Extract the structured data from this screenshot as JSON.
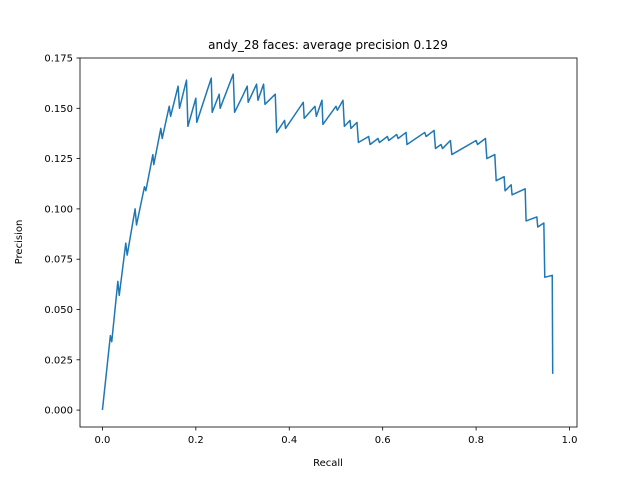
{
  "chart_data": {
    "type": "line",
    "title": "andy_28 faces: average precision 0.129",
    "x_label": "Recall",
    "y_label": "Precision",
    "x": [
      0,
      0.017,
      0.02,
      0.033,
      0.036,
      0.05,
      0.053,
      0.07,
      0.073,
      0.09,
      0.093,
      0.108,
      0.11,
      0.125,
      0.128,
      0.143,
      0.146,
      0.162,
      0.165,
      0.18,
      0.183,
      0.2,
      0.202,
      0.233,
      0.235,
      0.25,
      0.252,
      0.28,
      0.283,
      0.3,
      0.31,
      0.312,
      0.33,
      0.333,
      0.345,
      0.348,
      0.37,
      0.373,
      0.39,
      0.392,
      0.43,
      0.432,
      0.455,
      0.458,
      0.47,
      0.472,
      0.5,
      0.503,
      0.515,
      0.518,
      0.53,
      0.532,
      0.545,
      0.548,
      0.57,
      0.573,
      0.59,
      0.593,
      0.61,
      0.613,
      0.63,
      0.633,
      0.65,
      0.652,
      0.69,
      0.693,
      0.71,
      0.713,
      0.725,
      0.728,
      0.745,
      0.748,
      0.8,
      0.803,
      0.82,
      0.823,
      0.84,
      0.843,
      0.86,
      0.862,
      0.875,
      0.877,
      0.905,
      0.907,
      0.93,
      0.932,
      0.945,
      0.947,
      0.963,
      0.964
    ],
    "values": [
      0,
      0.037,
      0.034,
      0.064,
      0.057,
      0.083,
      0.077,
      0.1,
      0.092,
      0.111,
      0.109,
      0.127,
      0.122,
      0.14,
      0.135,
      0.151,
      0.146,
      0.161,
      0.15,
      0.164,
      0.141,
      0.155,
      0.143,
      0.165,
      0.148,
      0.157,
      0.15,
      0.167,
      0.148,
      0.156,
      0.161,
      0.153,
      0.162,
      0.154,
      0.162,
      0.152,
      0.157,
      0.138,
      0.144,
      0.14,
      0.153,
      0.145,
      0.151,
      0.146,
      0.154,
      0.142,
      0.151,
      0.149,
      0.154,
      0.141,
      0.144,
      0.14,
      0.143,
      0.133,
      0.136,
      0.132,
      0.135,
      0.133,
      0.136,
      0.134,
      0.137,
      0.135,
      0.138,
      0.132,
      0.138,
      0.136,
      0.139,
      0.13,
      0.132,
      0.13,
      0.134,
      0.127,
      0.134,
      0.132,
      0.135,
      0.125,
      0.127,
      0.114,
      0.116,
      0.109,
      0.112,
      0.107,
      0.11,
      0.094,
      0.096,
      0.091,
      0.093,
      0.066,
      0.067,
      0.018
    ],
    "color": "#1f77b4",
    "xlim": [
      -0.048,
      1.016
    ],
    "ylim": [
      -0.0084,
      0.175
    ],
    "xticks": [
      {
        "value": 0,
        "label": "0.0"
      },
      0.2,
      0.4,
      0.6,
      0.8,
      {
        "value": 1,
        "label": "1.0"
      }
    ],
    "yticks": [
      {
        "value": 0,
        "label": "0.000"
      },
      {
        "value": 0.025,
        "label": "0.025"
      },
      {
        "value": 0.05,
        "label": "0.050"
      },
      {
        "value": 0.075,
        "label": "0.075"
      },
      {
        "value": 0.1,
        "label": "0.100"
      },
      {
        "value": 0.125,
        "label": "0.125"
      },
      {
        "value": 0.15,
        "label": "0.150"
      },
      {
        "value": 0.175,
        "label": "0.175"
      }
    ],
    "grid": false
  }
}
